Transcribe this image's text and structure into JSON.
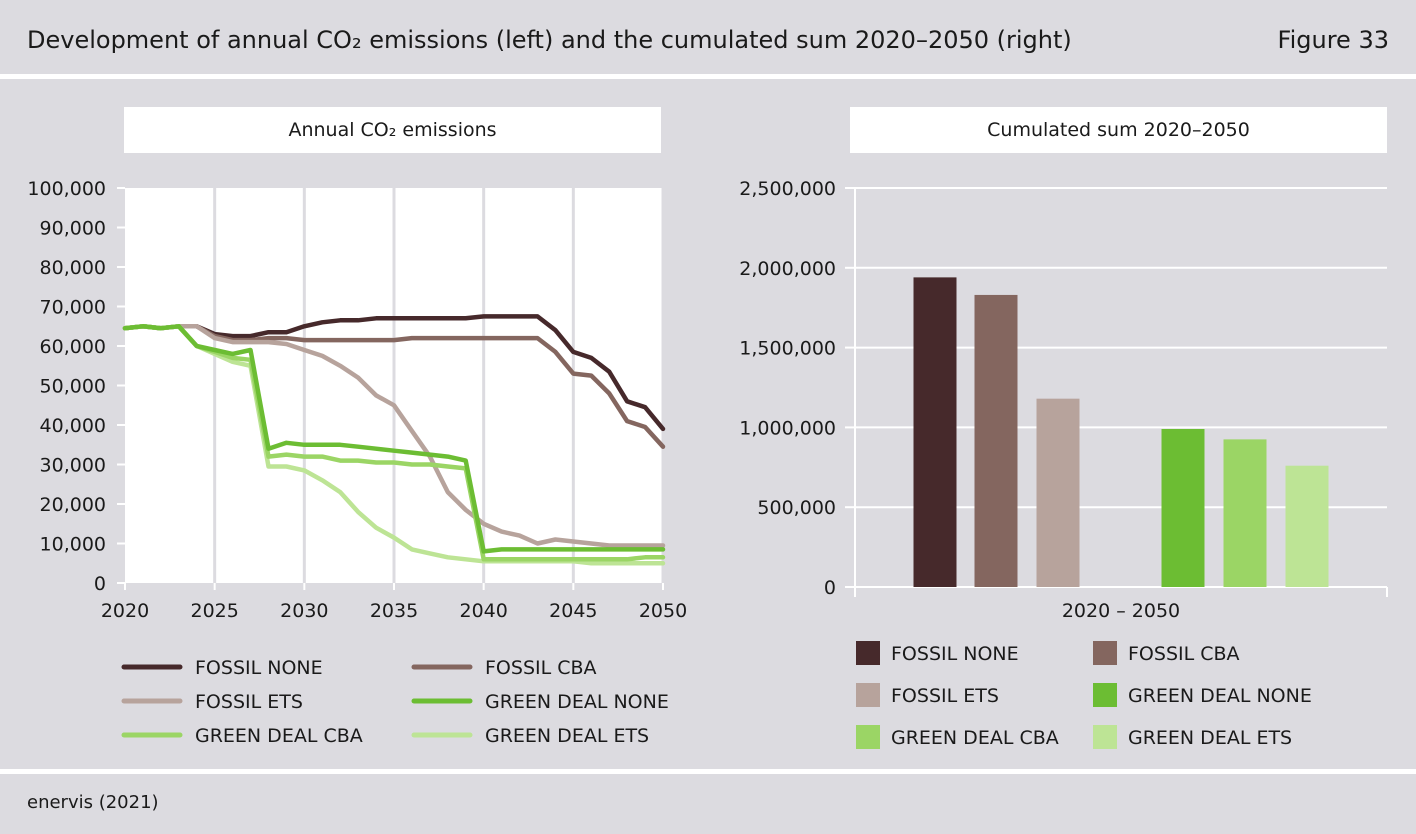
{
  "header": {
    "title": "Development of annual CO₂ emissions (left) and the cumulated sum 2020–2050 (right)",
    "figure_label": "Figure 33"
  },
  "footer": {
    "source": "enervis (2021)"
  },
  "colors": {
    "FOSSIL NONE": "#46292b",
    "FOSSIL CBA": "#84665f",
    "FOSSIL ETS": "#b7a39c",
    "GREEN DEAL NONE": "#6cbd33",
    "GREEN DEAL CBA": "#9bd565",
    "GREEN DEAL ETS": "#bde495"
  },
  "chart_data": [
    {
      "type": "line",
      "title": "Annual CO₂ emissions",
      "xlabel": "",
      "ylabel": "",
      "xlim": [
        2020,
        2050
      ],
      "ylim": [
        0,
        100000
      ],
      "x_ticks": [
        "2020",
        "2025",
        "2030",
        "2035",
        "2040",
        "2045",
        "2050"
      ],
      "y_ticks": [
        "0",
        "10,000",
        "20,000",
        "30,000",
        "40,000",
        "50,000",
        "60,000",
        "70,000",
        "80,000",
        "90,000",
        "100,000"
      ],
      "grid": "vertical",
      "legend_position": "bottom",
      "x": [
        2020,
        2021,
        2022,
        2023,
        2024,
        2025,
        2026,
        2027,
        2028,
        2029,
        2030,
        2031,
        2032,
        2033,
        2034,
        2035,
        2036,
        2037,
        2038,
        2039,
        2040,
        2041,
        2042,
        2043,
        2044,
        2045,
        2046,
        2047,
        2048,
        2049,
        2050
      ],
      "series": [
        {
          "name": "FOSSIL NONE",
          "values": [
            64500,
            65000,
            64500,
            65000,
            65000,
            63000,
            62500,
            62500,
            63500,
            63500,
            65000,
            66000,
            66500,
            66500,
            67000,
            67000,
            67000,
            67000,
            67000,
            67000,
            67500,
            67500,
            67500,
            67500,
            64000,
            58500,
            57000,
            53500,
            46000,
            44500,
            39000
          ]
        },
        {
          "name": "FOSSIL CBA",
          "values": [
            64500,
            65000,
            64500,
            65000,
            65000,
            62500,
            61500,
            61500,
            62000,
            62000,
            61500,
            61500,
            61500,
            61500,
            61500,
            61500,
            62000,
            62000,
            62000,
            62000,
            62000,
            62000,
            62000,
            62000,
            58500,
            53000,
            52500,
            48000,
            41000,
            39500,
            34500
          ]
        },
        {
          "name": "FOSSIL ETS",
          "values": [
            64500,
            65000,
            64500,
            65000,
            65000,
            62000,
            61000,
            61000,
            61000,
            60500,
            59000,
            57500,
            55000,
            52000,
            47500,
            45000,
            38500,
            32000,
            23000,
            18500,
            15000,
            13000,
            12000,
            10000,
            11000,
            10500,
            10000,
            9500,
            9500,
            9500,
            9500
          ]
        },
        {
          "name": "GREEN DEAL NONE",
          "values": [
            64500,
            65000,
            64500,
            65000,
            60000,
            59000,
            58000,
            59000,
            34000,
            35500,
            35000,
            35000,
            35000,
            34500,
            34000,
            33500,
            33000,
            32500,
            32000,
            31000,
            8000,
            8500,
            8500,
            8500,
            8500,
            8500,
            8500,
            8500,
            8500,
            8500,
            8500
          ]
        },
        {
          "name": "GREEN DEAL CBA",
          "values": [
            64500,
            65000,
            64500,
            65000,
            60000,
            58500,
            57000,
            56500,
            32000,
            32500,
            32000,
            32000,
            31000,
            31000,
            30500,
            30500,
            30000,
            30000,
            29500,
            29000,
            6000,
            6000,
            6000,
            6000,
            6000,
            6000,
            6000,
            6000,
            6000,
            6500,
            6500
          ]
        },
        {
          "name": "GREEN DEAL ETS",
          "values": [
            64500,
            65000,
            64500,
            65000,
            60000,
            58000,
            56000,
            55000,
            29500,
            29500,
            28500,
            26000,
            23000,
            18000,
            14000,
            11500,
            8500,
            7500,
            6500,
            6000,
            5500,
            5500,
            5500,
            5500,
            5500,
            5500,
            5000,
            5000,
            5000,
            5000,
            5000
          ]
        }
      ]
    },
    {
      "type": "bar",
      "title": "Cumulated sum 2020–2050",
      "xlabel": "",
      "ylabel": "",
      "categories": [
        "2020 – 2050"
      ],
      "ylim": [
        0,
        2500000
      ],
      "y_ticks": [
        "0",
        "500,000",
        "1,000,000",
        "1,500,000",
        "2,000,000",
        "2,500,000"
      ],
      "grid": "horizontal",
      "legend_position": "bottom",
      "series": [
        {
          "name": "FOSSIL NONE",
          "values": [
            1940000
          ]
        },
        {
          "name": "FOSSIL CBA",
          "values": [
            1830000
          ]
        },
        {
          "name": "FOSSIL ETS",
          "values": [
            1180000
          ]
        },
        {
          "name": "GREEN DEAL NONE",
          "values": [
            990000
          ]
        },
        {
          "name": "GREEN DEAL CBA",
          "values": [
            925000
          ]
        },
        {
          "name": "GREEN DEAL ETS",
          "values": [
            760000
          ]
        }
      ]
    }
  ]
}
